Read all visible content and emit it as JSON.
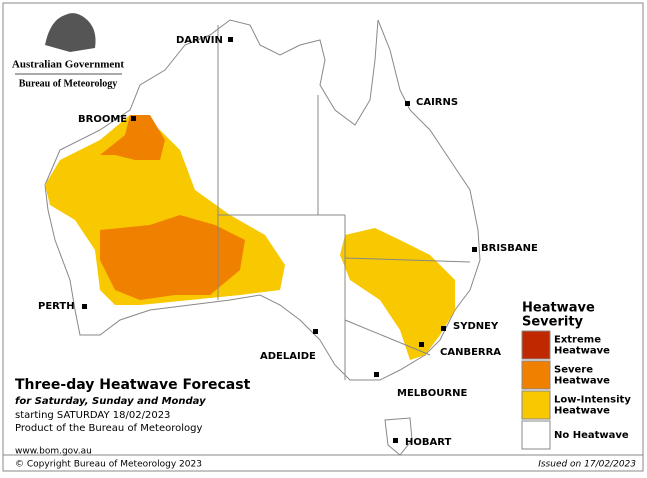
{
  "header": {
    "government": "Australian Government",
    "bureau": "Bureau of Meteorology"
  },
  "cities": [
    "DARWIN",
    "CAIRNS",
    "BROOME",
    "BRISBANE",
    "PERTH",
    "ADELAIDE",
    "SYDNEY",
    "CANBERRA",
    "MELBOURNE",
    "HOBART"
  ],
  "title": {
    "main": "Three-day Heatwave Forecast",
    "subtitle": "for Saturday, Sunday and Monday",
    "starting": "starting SATURDAY 18/02/2023",
    "product": "Product of the Bureau of Meteorology"
  },
  "legend": {
    "title_lines": [
      "Heatwave",
      "Severity"
    ],
    "items": [
      {
        "label_lines": [
          "Extreme",
          "Heatwave"
        ],
        "color": "#c02800"
      },
      {
        "label_lines": [
          "Severe",
          "Heatwave"
        ],
        "color": "#f08000"
      },
      {
        "label_lines": [
          "Low-Intensity",
          "Heatwave"
        ],
        "color": "#f8c800"
      },
      {
        "label_lines": [
          "No Heatwave"
        ],
        "color": "#ffffff"
      }
    ]
  },
  "footer": {
    "website": "www.bom.gov.au",
    "copyright": "© Copyright Bureau of Meteorology 2023",
    "issued": "Issued on 17/02/2023"
  }
}
